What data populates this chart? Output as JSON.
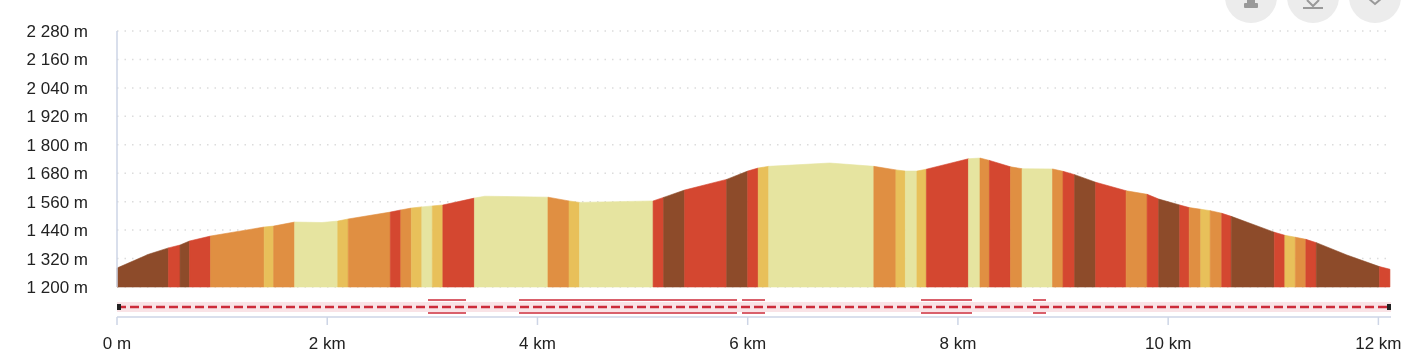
{
  "chart_data": {
    "type": "area",
    "series": [
      {
        "color": "#8d4b2a",
        "x": [
          0,
          0.3,
          0.49
        ],
        "values": [
          1280,
          1338,
          1365
        ]
      },
      {
        "color": "#d44730",
        "x": [
          0.49,
          0.6
        ],
        "values": [
          1365,
          1377
        ]
      },
      {
        "color": "#8d4b2a",
        "x": [
          0.6,
          0.69
        ],
        "values": [
          1377,
          1394
        ]
      },
      {
        "color": "#d44730",
        "x": [
          0.69,
          0.89
        ],
        "values": [
          1394,
          1415
        ]
      },
      {
        "color": "#e08f42",
        "x": [
          0.89,
          1.4
        ],
        "values": [
          1415,
          1453
        ]
      },
      {
        "color": "#e8c05a",
        "x": [
          1.4,
          1.49
        ],
        "values": [
          1453,
          1457
        ]
      },
      {
        "color": "#e08f42",
        "x": [
          1.49,
          1.69
        ],
        "values": [
          1457,
          1474
        ]
      },
      {
        "color": "#e6e4a0",
        "x": [
          1.69,
          1.95,
          2.1
        ],
        "values": [
          1474,
          1472,
          1478
        ]
      },
      {
        "color": "#e8c05a",
        "x": [
          2.1,
          2.2
        ],
        "values": [
          1478,
          1487
        ]
      },
      {
        "color": "#e08f42",
        "x": [
          2.2,
          2.6
        ],
        "values": [
          1487,
          1516
        ]
      },
      {
        "color": "#d44730",
        "x": [
          2.6,
          2.7
        ],
        "values": [
          1516,
          1525
        ]
      },
      {
        "color": "#e08f42",
        "x": [
          2.7,
          2.8
        ],
        "values": [
          1525,
          1533
        ]
      },
      {
        "color": "#e8c05a",
        "x": [
          2.8,
          2.9
        ],
        "values": [
          1533,
          1538
        ]
      },
      {
        "color": "#e6e4a0",
        "x": [
          2.9,
          3.0
        ],
        "values": [
          1538,
          1542
        ]
      },
      {
        "color": "#e8c05a",
        "x": [
          3.0,
          3.1
        ],
        "values": [
          1542,
          1546
        ]
      },
      {
        "color": "#d44730",
        "x": [
          3.1,
          3.4
        ],
        "values": [
          1546,
          1575
        ]
      },
      {
        "color": "#e6e4a0",
        "x": [
          3.4,
          3.5,
          4.1
        ],
        "values": [
          1575,
          1583,
          1579
        ]
      },
      {
        "color": "#e08f42",
        "x": [
          4.1,
          4.3
        ],
        "values": [
          1579,
          1563
        ]
      },
      {
        "color": "#e8c05a",
        "x": [
          4.3,
          4.4
        ],
        "values": [
          1563,
          1557
        ]
      },
      {
        "color": "#e6e4a0",
        "x": [
          4.4,
          5.1
        ],
        "values": [
          1557,
          1563
        ]
      },
      {
        "color": "#d44730",
        "x": [
          5.1,
          5.2
        ],
        "values": [
          1563,
          1578
        ]
      },
      {
        "color": "#8d4b2a",
        "x": [
          5.2,
          5.4
        ],
        "values": [
          1578,
          1609
        ]
      },
      {
        "color": "#d44730",
        "x": [
          5.4,
          5.8
        ],
        "values": [
          1609,
          1654
        ]
      },
      {
        "color": "#8d4b2a",
        "x": [
          5.8,
          6.0
        ],
        "values": [
          1654,
          1689
        ]
      },
      {
        "color": "#d44730",
        "x": [
          6.0,
          6.1
        ],
        "values": [
          1689,
          1702
        ]
      },
      {
        "color": "#e8c05a",
        "x": [
          6.1,
          6.2
        ],
        "values": [
          1702,
          1709
        ]
      },
      {
        "color": "#e6e4a0",
        "x": [
          6.2,
          6.78,
          7.2
        ],
        "values": [
          1709,
          1723,
          1709
        ]
      },
      {
        "color": "#e08f42",
        "x": [
          7.2,
          7.41
        ],
        "values": [
          1709,
          1694
        ]
      },
      {
        "color": "#e8c05a",
        "x": [
          7.41,
          7.5
        ],
        "values": [
          1694,
          1689
        ]
      },
      {
        "color": "#e6e4a0",
        "x": [
          7.5,
          7.61
        ],
        "values": [
          1689,
          1689
        ]
      },
      {
        "color": "#e8c05a",
        "x": [
          7.61,
          7.7
        ],
        "values": [
          1689,
          1697
        ]
      },
      {
        "color": "#d44730",
        "x": [
          7.7,
          8.1
        ],
        "values": [
          1697,
          1741
        ]
      },
      {
        "color": "#e6e4a0",
        "x": [
          8.1,
          8.21
        ],
        "values": [
          1741,
          1744
        ]
      },
      {
        "color": "#e08f42",
        "x": [
          8.21,
          8.3
        ],
        "values": [
          1744,
          1734
        ]
      },
      {
        "color": "#d44730",
        "x": [
          8.3,
          8.5
        ],
        "values": [
          1734,
          1707
        ]
      },
      {
        "color": "#e08f42",
        "x": [
          8.5,
          8.61
        ],
        "values": [
          1707,
          1699
        ]
      },
      {
        "color": "#e6e4a0",
        "x": [
          8.61,
          8.9
        ],
        "values": [
          1699,
          1698
        ]
      },
      {
        "color": "#e08f42",
        "x": [
          8.9,
          9.0
        ],
        "values": [
          1698,
          1688
        ]
      },
      {
        "color": "#d44730",
        "x": [
          9.0,
          9.11
        ],
        "values": [
          1688,
          1674
        ]
      },
      {
        "color": "#8d4b2a",
        "x": [
          9.11,
          9.31
        ],
        "values": [
          1674,
          1642
        ]
      },
      {
        "color": "#d44730",
        "x": [
          9.31,
          9.6
        ],
        "values": [
          1642,
          1606
        ]
      },
      {
        "color": "#e08f42",
        "x": [
          9.6,
          9.8
        ],
        "values": [
          1606,
          1591
        ]
      },
      {
        "color": "#d44730",
        "x": [
          9.8,
          9.91
        ],
        "values": [
          1591,
          1571
        ]
      },
      {
        "color": "#8d4b2a",
        "x": [
          9.91,
          10.11
        ],
        "values": [
          1571,
          1546
        ]
      },
      {
        "color": "#d44730",
        "x": [
          10.11,
          10.2
        ],
        "values": [
          1546,
          1535
        ]
      },
      {
        "color": "#e08f42",
        "x": [
          10.2,
          10.31
        ],
        "values": [
          1535,
          1528
        ]
      },
      {
        "color": "#e8c05a",
        "x": [
          10.31,
          10.4
        ],
        "values": [
          1528,
          1522
        ]
      },
      {
        "color": "#e08f42",
        "x": [
          10.4,
          10.51
        ],
        "values": [
          1522,
          1511
        ]
      },
      {
        "color": "#d44730",
        "x": [
          10.51,
          10.6
        ],
        "values": [
          1511,
          1498
        ]
      },
      {
        "color": "#8d4b2a",
        "x": [
          10.6,
          11.01
        ],
        "values": [
          1498,
          1431
        ]
      },
      {
        "color": "#d44730",
        "x": [
          11.01,
          11.11
        ],
        "values": [
          1431,
          1418
        ]
      },
      {
        "color": "#e8c05a",
        "x": [
          11.11,
          11.21
        ],
        "values": [
          1418,
          1410
        ]
      },
      {
        "color": "#e08f42",
        "x": [
          11.21,
          11.31
        ],
        "values": [
          1410,
          1401
        ]
      },
      {
        "color": "#d44730",
        "x": [
          11.31,
          11.41
        ],
        "values": [
          1401,
          1387
        ]
      },
      {
        "color": "#8d4b2a",
        "x": [
          11.41,
          11.7,
          12.01
        ],
        "values": [
          1387,
          1335,
          1286
        ]
      },
      {
        "color": "#d44730",
        "x": [
          12.01,
          12.11
        ],
        "values": [
          1286,
          1275
        ]
      }
    ],
    "xlim": [
      0,
      12.12
    ],
    "xticks": [
      {
        "value": 0,
        "label": "0 m"
      },
      {
        "value": 2,
        "label": "2 km"
      },
      {
        "value": 4,
        "label": "4 km"
      },
      {
        "value": 6,
        "label": "6 km"
      },
      {
        "value": 8,
        "label": "8 km"
      },
      {
        "value": 10,
        "label": "10 km"
      },
      {
        "value": 12,
        "label": "12 km"
      }
    ],
    "ylim": [
      1200,
      2280
    ],
    "yticks": [
      {
        "value": 1200,
        "label": "1 200 m"
      },
      {
        "value": 1320,
        "label": "1 320 m"
      },
      {
        "value": 1440,
        "label": "1 440 m"
      },
      {
        "value": 1560,
        "label": "1 560 m"
      },
      {
        "value": 1680,
        "label": "1 680 m"
      },
      {
        "value": 1800,
        "label": "1 800 m"
      },
      {
        "value": 1920,
        "label": "1 920 m"
      },
      {
        "value": 2040,
        "label": "2 040 m"
      },
      {
        "value": 2160,
        "label": "2 160 m"
      },
      {
        "value": 2280,
        "label": "2 280 m"
      }
    ],
    "grid": "y"
  }
}
